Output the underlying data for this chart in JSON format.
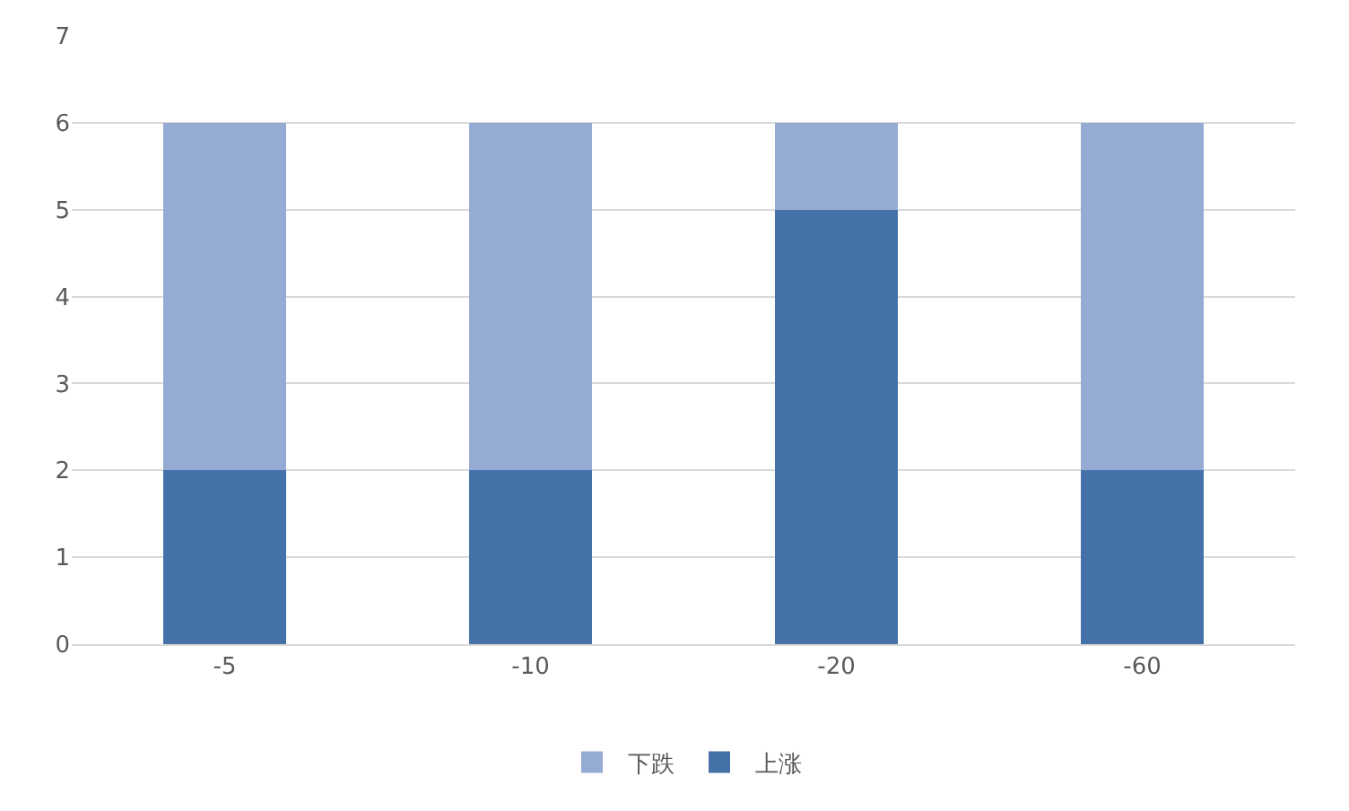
{
  "chart_data": {
    "type": "bar",
    "stacked": true,
    "categories": [
      "-5",
      "-10",
      "-20",
      "-60"
    ],
    "series": [
      {
        "name": "上涨",
        "color": "#4472a8",
        "values": [
          2,
          2,
          5,
          2
        ]
      },
      {
        "name": "下跌",
        "color": "#95abd3",
        "values": [
          4,
          4,
          1,
          4
        ]
      }
    ],
    "ylim": [
      0,
      7
    ],
    "yticks": [
      0,
      1,
      2,
      3,
      4,
      5,
      6,
      7
    ],
    "grid": "y",
    "legend": "bottom"
  }
}
